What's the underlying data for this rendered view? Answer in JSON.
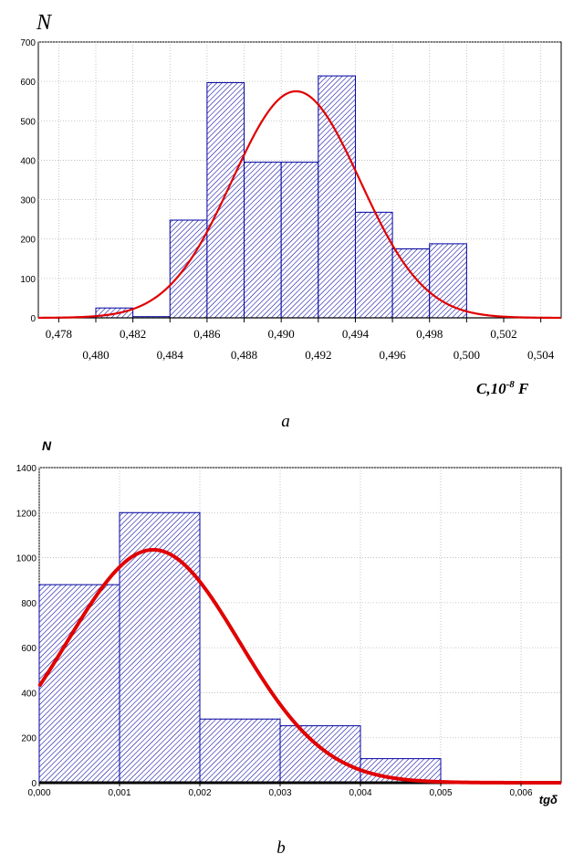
{
  "chart_data": [
    {
      "type": "bar",
      "panel": "a",
      "caption": "a",
      "ylabel": "N",
      "xlabel": "C,10^-8 F",
      "xlabel_base": "C,10",
      "xlabel_exp": "-8",
      "xlabel_unit": " F",
      "xlim": [
        0.4769,
        0.5051
      ],
      "ylim": [
        0,
        700
      ],
      "grid": true,
      "yticks": [
        0,
        100,
        200,
        300,
        400,
        500,
        600,
        700
      ],
      "xticks_upper": [
        "0,478",
        "0,482",
        "0,486",
        "0,490",
        "0,494",
        "0,498",
        "0,502"
      ],
      "xticks_upper_values": [
        0.478,
        0.482,
        0.486,
        0.49,
        0.494,
        0.498,
        0.502
      ],
      "xticks_lower": [
        "0,480",
        "0,484",
        "0,488",
        "0,492",
        "0,496",
        "0,500",
        "0,504"
      ],
      "xticks_lower_values": [
        0.48,
        0.484,
        0.488,
        0.492,
        0.496,
        0.5,
        0.504
      ],
      "bins": [
        {
          "from": 0.48,
          "to": 0.482,
          "value": 25
        },
        {
          "from": 0.482,
          "to": 0.484,
          "value": 3
        },
        {
          "from": 0.484,
          "to": 0.486,
          "value": 248
        },
        {
          "from": 0.486,
          "to": 0.488,
          "value": 597
        },
        {
          "from": 0.488,
          "to": 0.49,
          "value": 395
        },
        {
          "from": 0.49,
          "to": 0.492,
          "value": 395
        },
        {
          "from": 0.492,
          "to": 0.494,
          "value": 614
        },
        {
          "from": 0.494,
          "to": 0.496,
          "value": 268
        },
        {
          "from": 0.496,
          "to": 0.498,
          "value": 175
        },
        {
          "from": 0.498,
          "to": 0.5,
          "value": 188
        }
      ],
      "fit_curve": {
        "kind": "normal",
        "mean": 0.4908,
        "sd": 0.00345,
        "peak": 575,
        "color": "#e00000"
      },
      "bar_color": "#0000a0"
    },
    {
      "type": "bar",
      "panel": "b",
      "caption": "b",
      "ylabel": "N",
      "xlabel": "tgδ",
      "xlim": [
        0,
        0.0065
      ],
      "ylim": [
        0,
        1400
      ],
      "grid": true,
      "yticks": [
        0,
        200,
        400,
        600,
        800,
        1000,
        1200,
        1400
      ],
      "xticks": [
        "0,000",
        "0,001",
        "0,002",
        "0,003",
        "0,004",
        "0,005",
        "0,006"
      ],
      "xticks_values": [
        0,
        0.001,
        0.002,
        0.003,
        0.004,
        0.005,
        0.006
      ],
      "bins": [
        {
          "from": 0.0,
          "to": 0.001,
          "value": 880
        },
        {
          "from": 0.001,
          "to": 0.002,
          "value": 1200
        },
        {
          "from": 0.002,
          "to": 0.003,
          "value": 283
        },
        {
          "from": 0.003,
          "to": 0.004,
          "value": 253
        },
        {
          "from": 0.004,
          "to": 0.005,
          "value": 107
        }
      ],
      "fit_curve": {
        "kind": "normal",
        "mean": 0.00142,
        "sd": 0.00107,
        "peak": 1035,
        "color": "#e00000"
      },
      "bar_color": "#0000a0"
    }
  ]
}
